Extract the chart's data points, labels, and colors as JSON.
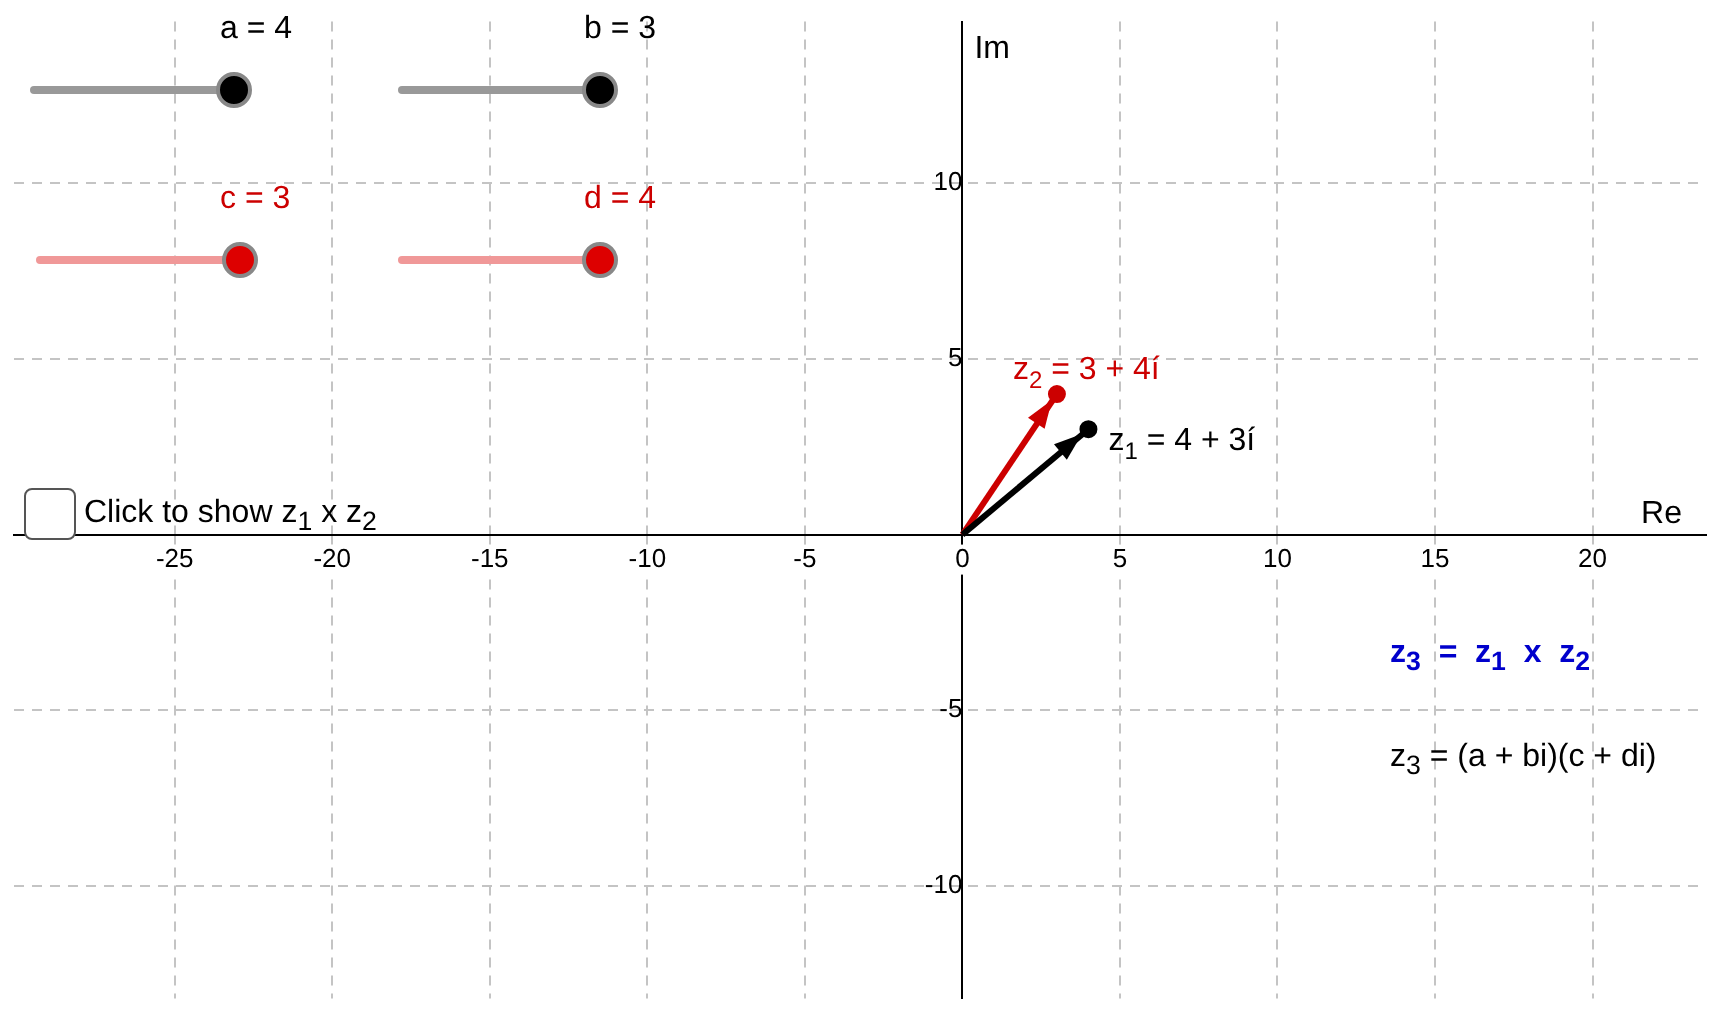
{
  "chart_data": {
    "type": "line",
    "xlabel": "Re",
    "ylabel": "Im",
    "xlim": [
      -30.1,
      23.6
    ],
    "ylim": [
      -13.2,
      14.6
    ],
    "xticks": [
      -25,
      -20,
      -15,
      -10,
      -5,
      0,
      5,
      10,
      15,
      20
    ],
    "yticks": [
      -10,
      -5,
      {
        "value": 0,
        "label": null
      },
      5,
      10
    ],
    "grid": true,
    "marker": "circle",
    "series": [
      {
        "name": "z$_{1}$ = 4 + 3í",
        "color": "#000000",
        "x": [
          0,
          4
        ],
        "values": [
          0,
          3
        ]
      },
      {
        "name": "z$_{2}$ = 3 + 4í",
        "color": "#cc0000",
        "x": [
          0,
          3
        ],
        "values": [
          0,
          4
        ]
      }
    ],
    "annotations": [
      "a = 4",
      "b = 3",
      "c = 3",
      "d = 4",
      "Click to show z$_{1}$ x z$_{2}$",
      "z$_{3}$  =  z$_{1}$  x  z$_{2}$",
      "z$_{3}$ = (a + bi)(c + di)"
    ]
  }
}
